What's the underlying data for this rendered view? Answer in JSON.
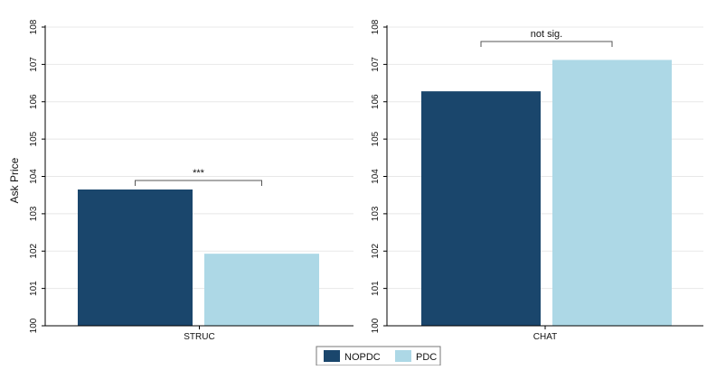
{
  "ylabel": "Ask Price",
  "colors": {
    "nopdc": "#1a466c",
    "pdc": "#add8e6",
    "grid": "#e8e8e8",
    "axis": "#000000"
  },
  "legend": {
    "placement": "bottom-center",
    "items": [
      {
        "name": "NOPDC",
        "color": "#1a466c"
      },
      {
        "name": "PDC",
        "color": "#add8e6"
      }
    ]
  },
  "chart_data": [
    {
      "type": "bar",
      "category": "STRUC",
      "ylim": [
        100,
        108
      ],
      "yticks": [
        "100",
        "101",
        "102",
        "103",
        "104",
        "105",
        "106",
        "107",
        "108"
      ],
      "grid": true,
      "series": [
        {
          "name": "NOPDC",
          "values": [
            103.65
          ]
        },
        {
          "name": "PDC",
          "values": [
            101.93
          ]
        }
      ],
      "annotation": "***"
    },
    {
      "type": "bar",
      "category": "CHAT",
      "ylim": [
        100,
        108
      ],
      "yticks": [
        "100",
        "101",
        "102",
        "103",
        "104",
        "105",
        "106",
        "107",
        "108"
      ],
      "grid": true,
      "series": [
        {
          "name": "NOPDC",
          "values": [
            106.28
          ]
        },
        {
          "name": "PDC",
          "values": [
            107.12
          ]
        }
      ],
      "annotation": "not sig."
    }
  ]
}
